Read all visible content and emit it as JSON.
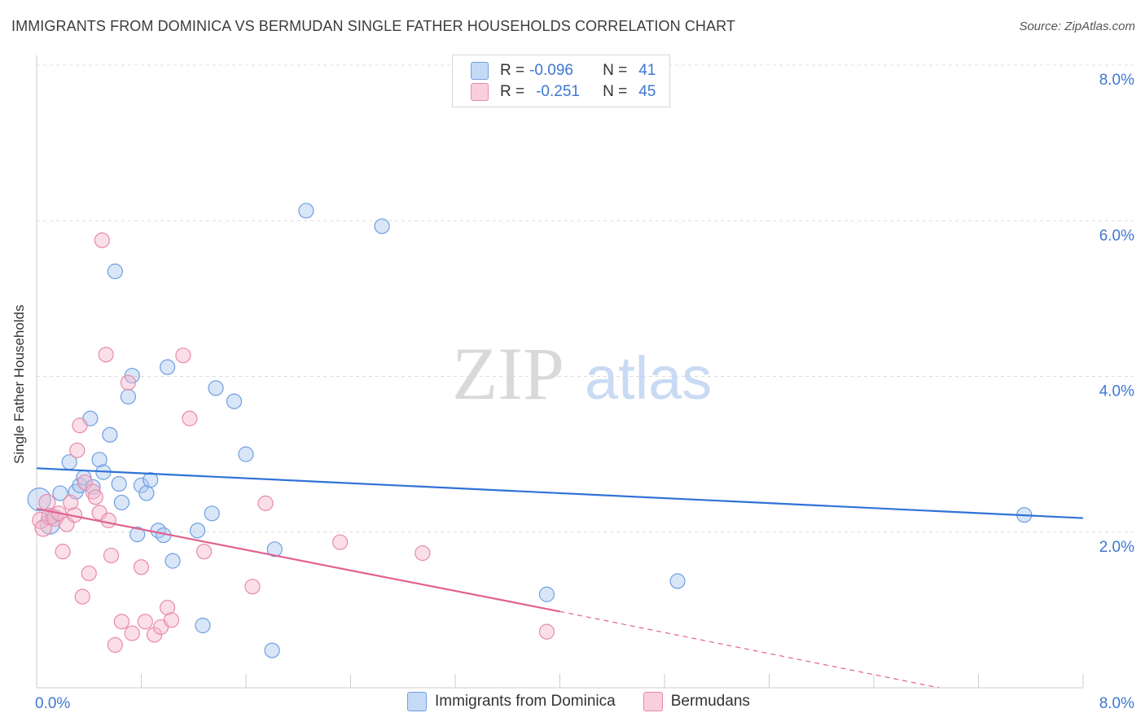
{
  "header": {
    "title": "IMMIGRANTS FROM DOMINICA VS BERMUDAN SINGLE FATHER HOUSEHOLDS CORRELATION CHART",
    "source": "Source: ZipAtlas.com"
  },
  "watermark": {
    "part1": "ZIP",
    "part2": "atlas"
  },
  "stats_legend": {
    "rows": [
      {
        "r_label": "R =",
        "r_value": "-0.096",
        "n_label": "N =",
        "n_value": "41",
        "color": "#aac7f0"
      },
      {
        "r_label": "R =",
        "r_value": "-0.251",
        "n_label": "N =",
        "n_value": "45",
        "color": "#f5b9cc"
      }
    ]
  },
  "colors": {
    "blue_fill": "#aac7f0",
    "blue_stroke": "#6f9fe0",
    "blue_line": "#2f72d6",
    "pink_fill": "#f5b9cc",
    "pink_stroke": "#e88aa8",
    "pink_line": "#e0628f",
    "grid": "#dddddd",
    "axis_text": "#3f77d1"
  },
  "chart_data": {
    "type": "scatter",
    "title": "IMMIGRANTS FROM DOMINICA VS BERMUDAN SINGLE FATHER HOUSEHOLDS CORRELATION CHART",
    "xlabel": "",
    "ylabel": "Single Father Households",
    "xlim": [
      0,
      8
    ],
    "ylim": [
      0,
      8
    ],
    "x_tick_labels": [
      "0.0%",
      "8.0%"
    ],
    "y_ticks": [
      2,
      4,
      6,
      8
    ],
    "y_tick_labels": [
      "2.0%",
      "4.0%",
      "6.0%",
      "8.0%"
    ],
    "grid": true,
    "legend_position": "bottom",
    "series": [
      {
        "name": "Immigrants from Dominica",
        "r": -0.096,
        "n": 41,
        "trend": {
          "x": [
            0.0,
            8.0
          ],
          "y": [
            2.82,
            2.18
          ]
        },
        "points": [
          [
            0.02,
            2.42,
            14
          ],
          [
            0.1,
            2.1,
            12
          ],
          [
            0.12,
            2.2,
            9
          ],
          [
            0.18,
            2.5,
            9
          ],
          [
            0.25,
            2.9,
            9
          ],
          [
            0.3,
            2.52,
            9
          ],
          [
            0.33,
            2.6,
            9
          ],
          [
            0.36,
            2.7,
            9
          ],
          [
            0.41,
            3.46,
            9
          ],
          [
            0.43,
            2.58,
            9
          ],
          [
            0.48,
            2.93,
            9
          ],
          [
            0.51,
            2.77,
            9
          ],
          [
            0.56,
            3.25,
            9
          ],
          [
            0.6,
            5.35,
            9
          ],
          [
            0.63,
            2.62,
            9
          ],
          [
            0.65,
            2.38,
            9
          ],
          [
            0.7,
            3.74,
            9
          ],
          [
            0.73,
            4.01,
            9
          ],
          [
            0.77,
            1.97,
            9
          ],
          [
            0.8,
            2.6,
            9
          ],
          [
            0.84,
            2.5,
            9
          ],
          [
            0.87,
            2.67,
            9
          ],
          [
            0.93,
            2.02,
            9
          ],
          [
            0.97,
            1.96,
            9
          ],
          [
            1.0,
            4.12,
            9
          ],
          [
            1.04,
            1.63,
            9
          ],
          [
            1.23,
            2.02,
            9
          ],
          [
            1.27,
            0.8,
            9
          ],
          [
            1.34,
            2.24,
            9
          ],
          [
            1.37,
            3.85,
            9
          ],
          [
            1.51,
            3.68,
            9
          ],
          [
            1.6,
            3.0,
            9
          ],
          [
            1.8,
            0.48,
            9
          ],
          [
            1.82,
            1.78,
            9
          ],
          [
            2.06,
            6.13,
            9
          ],
          [
            2.64,
            5.93,
            9
          ],
          [
            3.9,
            1.2,
            9
          ],
          [
            4.9,
            1.37,
            9
          ],
          [
            7.55,
            2.22,
            9
          ]
        ]
      },
      {
        "name": "Bermudans",
        "r": -0.251,
        "n": 45,
        "trend": {
          "x": [
            0.0,
            4.0
          ],
          "y": [
            2.3,
            0.98
          ]
        },
        "trend_dashed": {
          "x": [
            4.0,
            6.9
          ],
          "y": [
            0.98,
            0.0
          ]
        },
        "points": [
          [
            0.03,
            2.15,
            10
          ],
          [
            0.05,
            2.05,
            10
          ],
          [
            0.08,
            2.38,
            10
          ],
          [
            0.1,
            2.2,
            10
          ],
          [
            0.14,
            2.18,
            10
          ],
          [
            0.17,
            2.24,
            9
          ],
          [
            0.2,
            1.75,
            9
          ],
          [
            0.23,
            2.1,
            9
          ],
          [
            0.26,
            2.38,
            9
          ],
          [
            0.29,
            2.22,
            9
          ],
          [
            0.31,
            3.05,
            9
          ],
          [
            0.33,
            3.37,
            9
          ],
          [
            0.35,
            1.17,
            9
          ],
          [
            0.37,
            2.64,
            9
          ],
          [
            0.4,
            1.47,
            9
          ],
          [
            0.43,
            2.52,
            9
          ],
          [
            0.45,
            2.45,
            9
          ],
          [
            0.48,
            2.25,
            9
          ],
          [
            0.5,
            5.75,
            9
          ],
          [
            0.53,
            4.28,
            9
          ],
          [
            0.55,
            2.15,
            9
          ],
          [
            0.57,
            1.7,
            9
          ],
          [
            0.6,
            0.55,
            9
          ],
          [
            0.65,
            0.85,
            9
          ],
          [
            0.7,
            3.92,
            9
          ],
          [
            0.73,
            0.7,
            9
          ],
          [
            0.8,
            1.55,
            9
          ],
          [
            0.83,
            0.85,
            9
          ],
          [
            0.9,
            0.68,
            9
          ],
          [
            0.95,
            0.78,
            9
          ],
          [
            1.0,
            1.03,
            9
          ],
          [
            1.03,
            0.87,
            9
          ],
          [
            1.12,
            4.27,
            9
          ],
          [
            1.17,
            3.46,
            9
          ],
          [
            1.28,
            1.75,
            9
          ],
          [
            1.65,
            1.3,
            9
          ],
          [
            1.75,
            2.37,
            9
          ],
          [
            2.32,
            1.87,
            9
          ],
          [
            2.95,
            1.73,
            9
          ],
          [
            3.9,
            0.72,
            9
          ]
        ]
      }
    ]
  }
}
